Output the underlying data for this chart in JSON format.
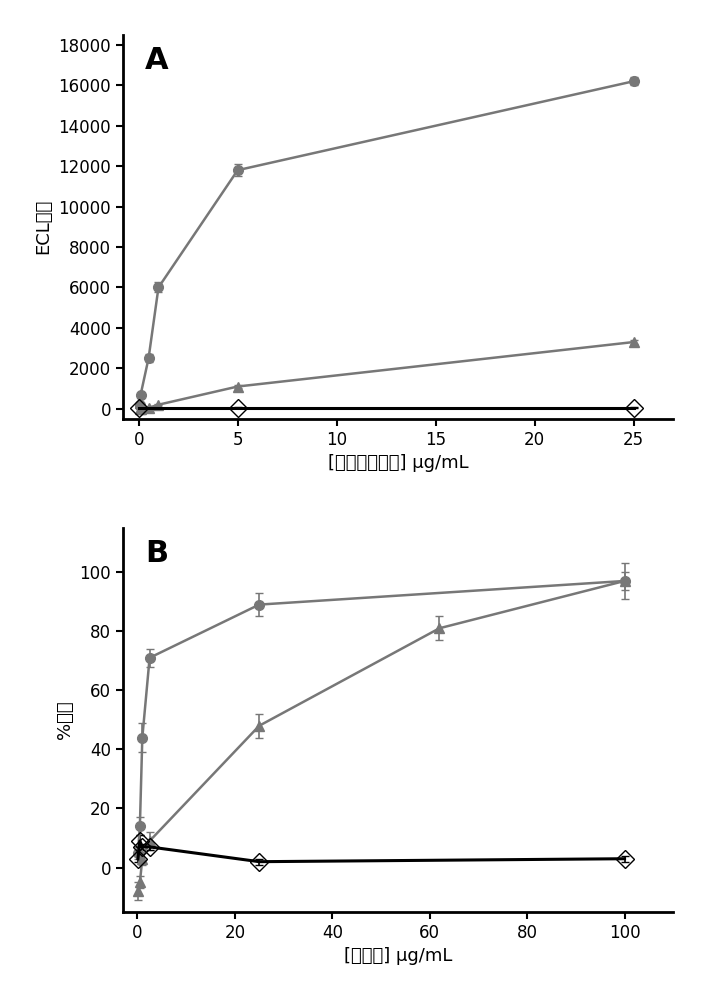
{
  "panelA": {
    "label": "A",
    "xlabel": "[钉标记的蛋白] µg/mL",
    "ylabel": "ECL信号",
    "xlim": [
      -0.8,
      27
    ],
    "ylim": [
      -500,
      18500
    ],
    "yticks": [
      0,
      2000,
      4000,
      6000,
      8000,
      10000,
      12000,
      14000,
      16000,
      18000
    ],
    "xticks": [
      0,
      5,
      10,
      15,
      20,
      25
    ],
    "series": [
      {
        "x": [
          0.05,
          0.1,
          0.5,
          1.0,
          5.0,
          25.0
        ],
        "y": [
          200,
          700,
          2500,
          6000,
          11800,
          16200
        ],
        "yerr": [
          30,
          80,
          200,
          250,
          300,
          200
        ],
        "marker": "o",
        "color": "#777777",
        "linewidth": 1.8,
        "markersize": 7,
        "fillstyle": "full",
        "linestyle": "-"
      },
      {
        "x": [
          0.05,
          0.1,
          0.5,
          1.0,
          5.0,
          25.0
        ],
        "y": [
          0,
          10,
          50,
          200,
          1100,
          3300
        ],
        "yerr": [
          5,
          5,
          10,
          30,
          80,
          100
        ],
        "marker": "^",
        "color": "#777777",
        "linewidth": 1.8,
        "markersize": 7,
        "fillstyle": "full",
        "linestyle": "-"
      },
      {
        "x": [
          0.0,
          5.0,
          25.0
        ],
        "y": [
          50,
          50,
          50
        ],
        "yerr": [
          15,
          15,
          15
        ],
        "marker": "D",
        "color": "#000000",
        "linewidth": 2.2,
        "markersize": 9,
        "fillstyle": "none",
        "linestyle": "-"
      }
    ]
  },
  "panelB": {
    "label": "B",
    "xlabel": "[竞争者] µg/mL",
    "ylabel": "%抑制",
    "xlim": [
      -3,
      110
    ],
    "ylim": [
      -15,
      115
    ],
    "yticks": [
      0,
      20,
      40,
      60,
      80,
      100
    ],
    "xticks": [
      0,
      20,
      40,
      60,
      80,
      100
    ],
    "series": [
      {
        "x": [
          0.1,
          0.5,
          1.0,
          2.5,
          25.0,
          100.0
        ],
        "y": [
          5,
          14,
          44,
          71,
          89,
          97
        ],
        "yerr": [
          2,
          3,
          5,
          3,
          4,
          6
        ],
        "marker": "o",
        "color": "#777777",
        "linewidth": 1.8,
        "markersize": 7,
        "fillstyle": "full",
        "linestyle": "-"
      },
      {
        "x": [
          0.1,
          0.5,
          1.0,
          2.5,
          25.0,
          62.0,
          100.0
        ],
        "y": [
          -8,
          -5,
          3,
          9,
          48,
          81,
          97
        ],
        "yerr": [
          3,
          2,
          2,
          3,
          4,
          4,
          3
        ],
        "marker": "^",
        "color": "#777777",
        "linewidth": 1.8,
        "markersize": 7,
        "fillstyle": "full",
        "linestyle": "-"
      },
      {
        "x": [
          0.1,
          0.5,
          1.0,
          2.5,
          25.0,
          100.0
        ],
        "y": [
          3,
          9,
          7,
          7,
          2,
          3
        ],
        "yerr": [
          1,
          2,
          1,
          1,
          1,
          1
        ],
        "marker": "D",
        "color": "#000000",
        "linewidth": 2.2,
        "markersize": 9,
        "fillstyle": "none",
        "linestyle": "-"
      }
    ]
  },
  "background_color": "#ffffff",
  "fontsize_label": 13,
  "fontsize_tick": 12,
  "fontsize_panel": 22
}
